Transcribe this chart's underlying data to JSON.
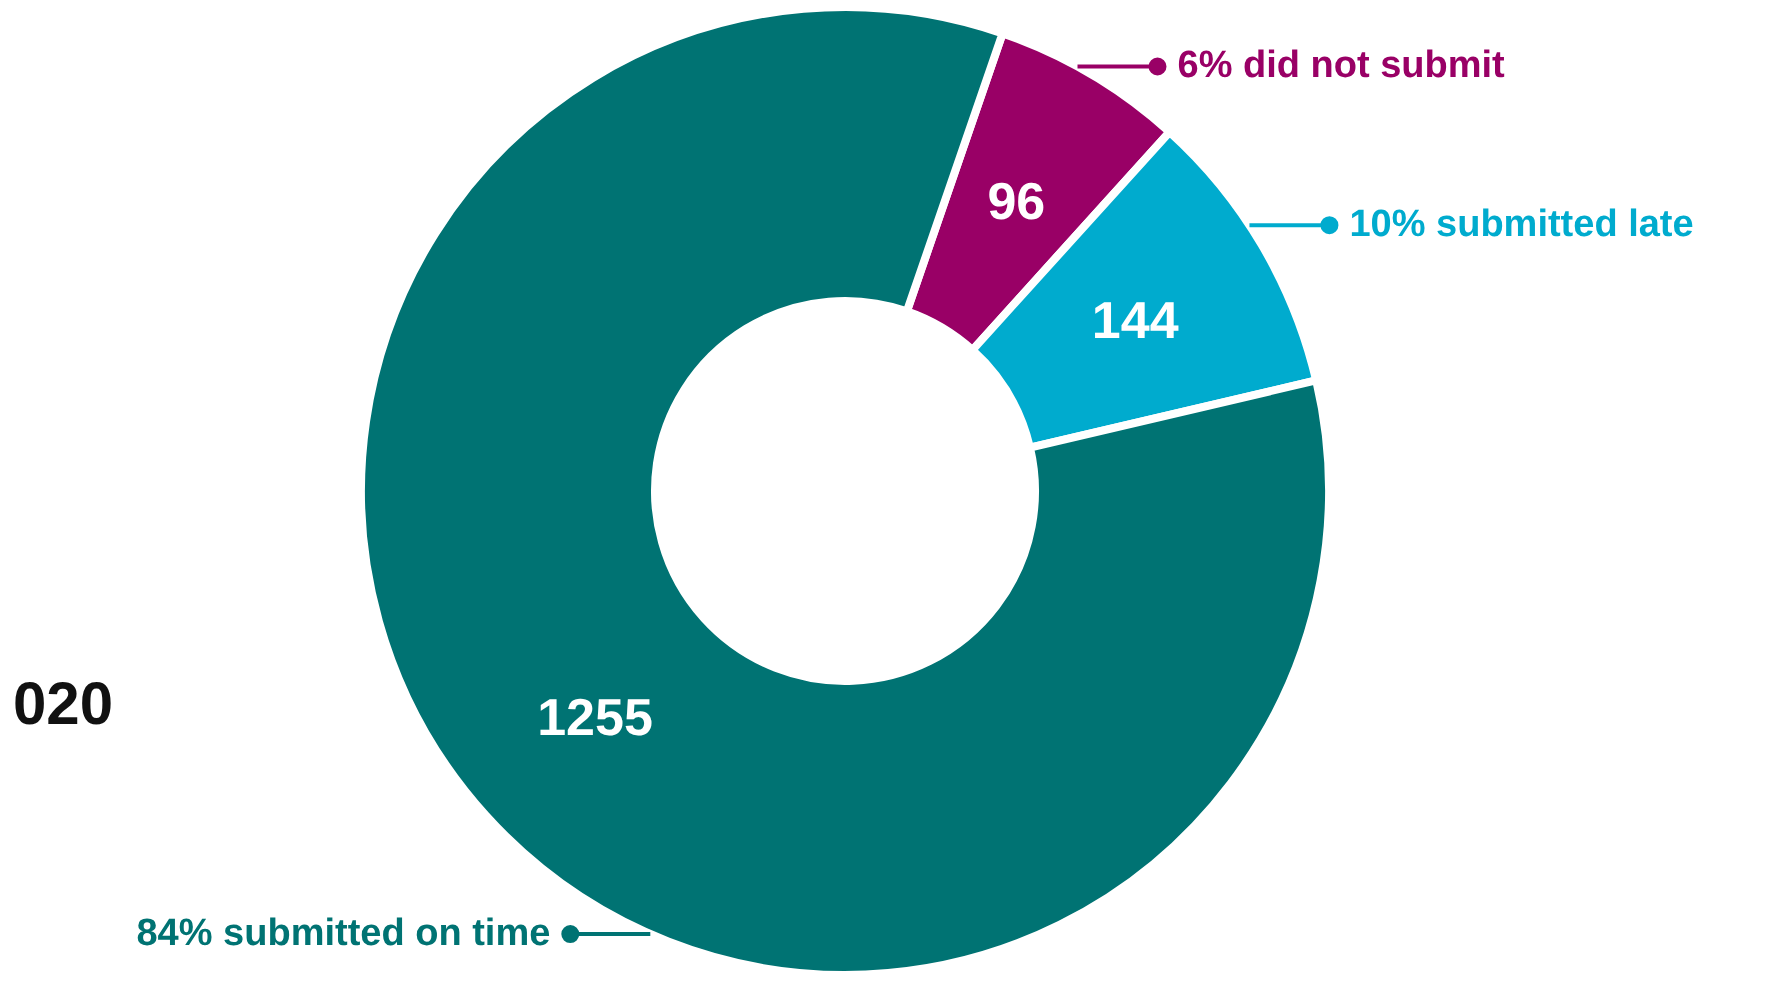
{
  "chart_data": {
    "type": "donut",
    "categories": [
      "6% did not submit",
      "10% submitted late",
      "84% submitted on time"
    ],
    "values": [
      96,
      144,
      1255
    ],
    "colors": [
      "#990066",
      "#00abce",
      "#007373"
    ],
    "data_labels": true,
    "legend": "right",
    "annotations": [
      "020"
    ]
  }
}
